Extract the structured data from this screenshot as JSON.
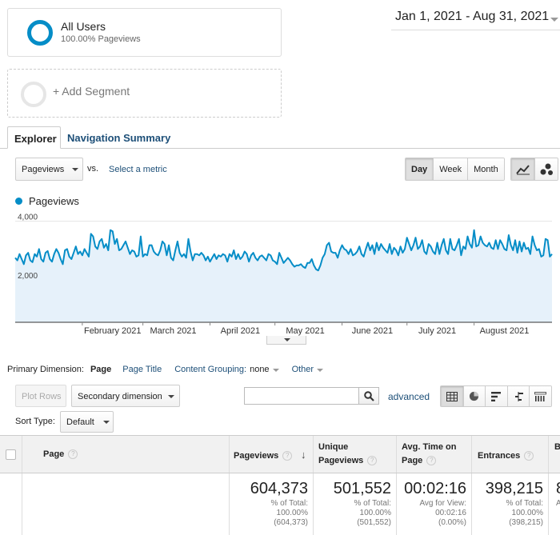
{
  "segments": {
    "active": {
      "name": "All Users",
      "sub": "100.00% Pageviews"
    },
    "add_label": "+ Add Segment"
  },
  "date_range": "Jan 1, 2021 - Aug 31, 2021",
  "tabs": {
    "explorer": "Explorer",
    "navigation_summary": "Navigation Summary"
  },
  "controls": {
    "metric": "Pageviews",
    "vs": "vs.",
    "select_metric": "Select a metric",
    "periods": [
      "Day",
      "Week",
      "Month"
    ],
    "active_period": "Day"
  },
  "chart_data": {
    "type": "area",
    "series": [
      {
        "name": "Pageviews",
        "color": "#058dc7",
        "values": [
          2550,
          2450,
          2700,
          2500,
          2300,
          2650,
          2750,
          2450,
          2380,
          2700,
          2600,
          2900,
          2500,
          2400,
          2750,
          2820,
          2500,
          2400,
          2700,
          2900,
          2750,
          2500,
          2300,
          2850,
          2900,
          2600,
          2500,
          2750,
          3000,
          2700,
          2800,
          2650,
          2900,
          2750,
          2600,
          3500,
          3400,
          3000,
          2900,
          3200,
          3300,
          2950,
          3100,
          2850,
          3650,
          3600,
          3100,
          3300,
          2850,
          2900,
          3050,
          3200,
          2950,
          2700,
          2850,
          2800,
          2600,
          2650,
          3400,
          2600,
          2700,
          2650,
          3050,
          3050,
          2800,
          2700,
          2650,
          2850,
          3200,
          3100,
          2650,
          3050,
          2550,
          2450,
          2850,
          3200,
          2750,
          2600,
          2700,
          2550,
          3300,
          2800,
          2450,
          2700,
          2700,
          2650,
          2750,
          2650,
          2450,
          2600,
          2400,
          2550,
          2700,
          2500,
          2650,
          2600,
          2700,
          2650,
          2400,
          2700,
          2600,
          2850,
          2500,
          2700,
          2500,
          2600,
          2800,
          2700,
          2400,
          2650,
          2750,
          2550,
          2450,
          2600,
          2650,
          2550,
          2450,
          2700,
          2650,
          2450,
          2400,
          2300,
          2750,
          2550,
          2350,
          2450,
          2550,
          2450,
          2300,
          2200,
          2250,
          2250,
          2300,
          2200,
          2150,
          2350,
          2350,
          2500,
          2250,
          2100,
          2050,
          2250,
          2550,
          2700,
          3050,
          3150,
          2800,
          2750,
          2750,
          2550,
          2850,
          3050,
          2900,
          2850,
          2700,
          2900,
          2650,
          2700,
          2800,
          3000,
          2700,
          2600,
          2900,
          3150,
          2850,
          3050,
          2700,
          3150,
          2850,
          3100,
          2950,
          2850,
          2750,
          3100,
          2700,
          2950,
          2850,
          2650,
          3000,
          2750,
          2900,
          3350,
          3100,
          2850,
          3050,
          3350,
          2900,
          3000,
          3250,
          2800,
          2700,
          3100,
          3000,
          2800,
          2700,
          3150,
          2700,
          3050,
          3300,
          2850,
          2700,
          3300,
          2900,
          2850,
          3050,
          3300,
          2650,
          3000,
          2900,
          3400,
          3100,
          2950,
          3650,
          3000,
          3050,
          3400,
          3150,
          3050,
          3000,
          3150,
          2950,
          2900,
          3250,
          2900,
          3250,
          3100,
          2900,
          2850,
          3450,
          3050,
          2850,
          3250,
          2750,
          3200,
          2800,
          3150,
          2900,
          2950,
          2700,
          3400,
          3050,
          2850,
          2900,
          2600,
          2650,
          3300,
          3250,
          2600,
          2700
        ]
      }
    ],
    "x_labels": [
      "February 2021",
      "March 2021",
      "April 2021",
      "May 2021",
      "June 2021",
      "July 2021",
      "August 2021"
    ],
    "y_ticks": [
      "4,000",
      "2,000"
    ],
    "ylim": [
      0,
      4400
    ],
    "fill_color": "#e6f1fa",
    "grid": true
  },
  "dimension": {
    "primary_label": "Primary Dimension:",
    "active": "Page",
    "page_title": "Page Title",
    "content_grouping": "Content Grouping:",
    "content_grouping_value": "none",
    "other": "Other"
  },
  "table_controls": {
    "plot_rows": "Plot Rows",
    "secondary_dimension": "Secondary dimension",
    "search_value": "",
    "advanced": "advanced",
    "sort_type_label": "Sort Type:",
    "sort_type_value": "Default"
  },
  "table": {
    "headers": {
      "page": "Page",
      "pageviews": "Pageviews",
      "unique_pageviews_1": "Unique",
      "unique_pageviews_2": "Pageviews",
      "avg_time_1": "Avg. Time on",
      "avg_time_2": "Page",
      "entrances": "Entrances",
      "bounce_partial": "B"
    },
    "help_glyph": "?",
    "sort_arrow": "↓",
    "totals": {
      "pageviews": {
        "value": "604,373",
        "l1": "% of Total:",
        "l2": "100.00%",
        "l3": "(604,373)"
      },
      "unique_pageviews": {
        "value": "501,552",
        "l1": "% of Total:",
        "l2": "100.00%",
        "l3": "(501,552)"
      },
      "avg_time": {
        "value": "00:02:16",
        "l1": "Avg for View:",
        "l2": "00:02:16",
        "l3": "(0.00%)"
      },
      "entrances": {
        "value": "398,215",
        "l1": "% of Total:",
        "l2": "100.00%",
        "l3": "(398,215)"
      },
      "bounce_partial": {
        "value": "8",
        "l1": "A"
      }
    }
  }
}
